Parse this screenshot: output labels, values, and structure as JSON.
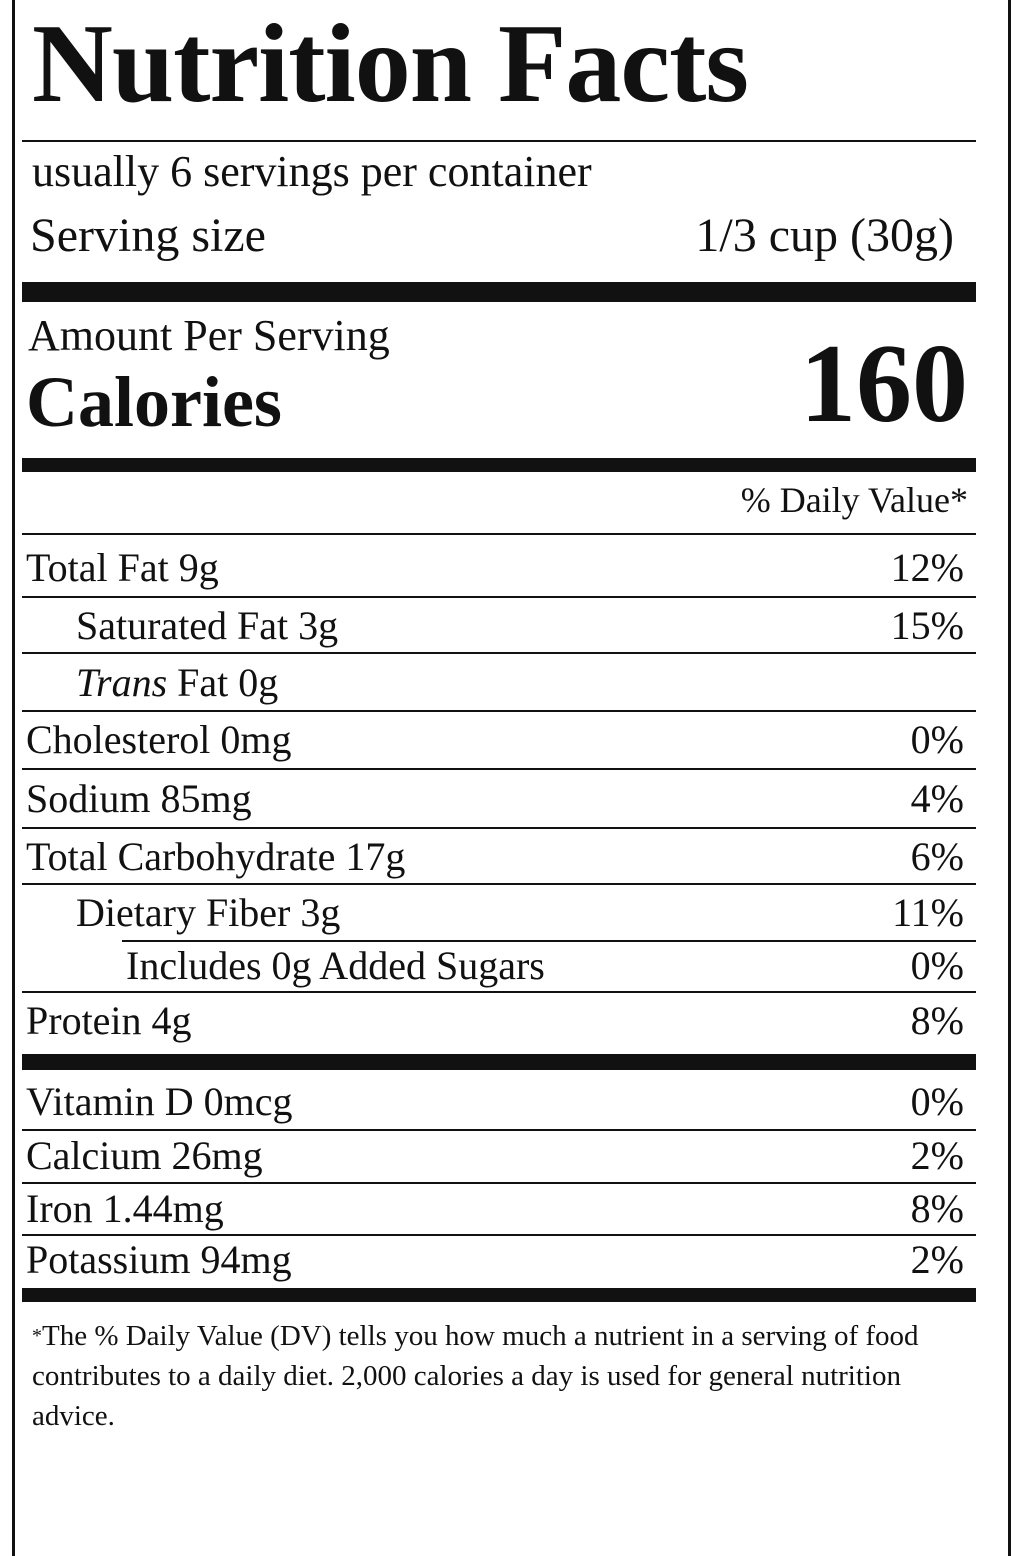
{
  "label": {
    "title": "Nutrition Facts",
    "servings_per_container": "usually 6 servings per container",
    "serving_size_label": "Serving size",
    "serving_size_value": "1/3 cup (30g)",
    "amount_per_serving": "Amount Per Serving",
    "calories_label": "Calories",
    "calories_value": "160",
    "daily_value_header": "% Daily Value*",
    "nutrients": [
      {
        "label": "Total Fat 9g",
        "dv": "12%"
      },
      {
        "label": "Saturated Fat 3g",
        "dv": "15%"
      },
      {
        "label_italic": "Trans",
        "label_rest": " Fat 0g",
        "dv": ""
      },
      {
        "label": "Cholesterol 0mg",
        "dv": "0%"
      },
      {
        "label": "Sodium 85mg",
        "dv": "4%"
      },
      {
        "label": "Total Carbohydrate 17g",
        "dv": "6%"
      },
      {
        "label": "Dietary Fiber 3g",
        "dv": "11%"
      },
      {
        "label": "Includes 0g Added Sugars",
        "dv": "0%"
      },
      {
        "label": "Protein 4g",
        "dv": "8%"
      }
    ],
    "vitamins": [
      {
        "label": "Vitamin D 0mcg",
        "dv": "0%"
      },
      {
        "label": "Calcium 26mg",
        "dv": "2%"
      },
      {
        "label": "Iron 1.44mg",
        "dv": "8%"
      },
      {
        "label": "Potassium 94mg",
        "dv": "2%"
      }
    ],
    "footnote_star": "*",
    "footnote_text": "The % Daily Value (DV) tells you how much a nutrient in a serving of food contributes to a daily diet. 2,000 calories a day is used for general nutrition advice."
  }
}
